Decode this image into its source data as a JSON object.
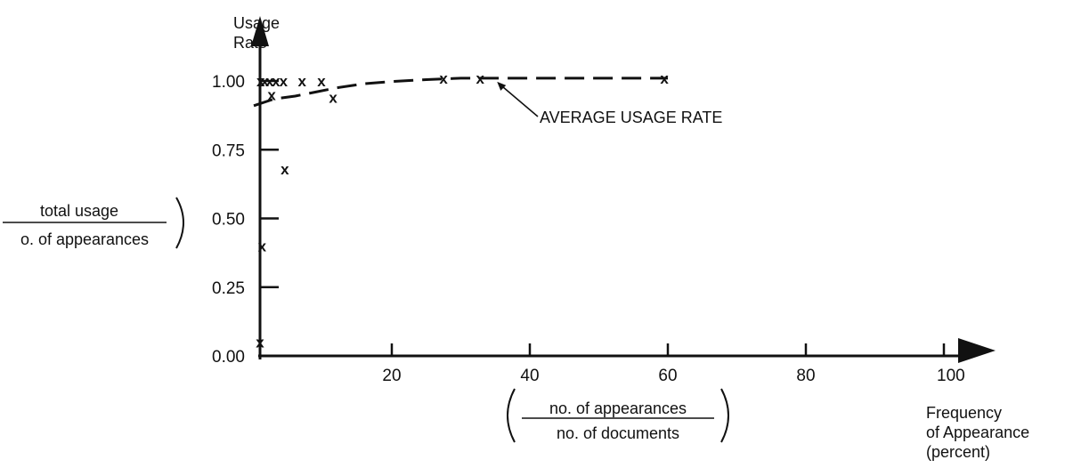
{
  "chart_data": {
    "type": "scatter",
    "y_axis_title": [
      "Usage",
      "Rate"
    ],
    "y_formula": {
      "numerator": "total usage",
      "denominator": "o. of appearances"
    },
    "x_axis_title": [
      "Frequency",
      "of Appearance",
      "(percent)"
    ],
    "x_formula": {
      "numerator": "no. of appearances",
      "denominator": "no. of documents"
    },
    "xlim": [
      0,
      100
    ],
    "ylim": [
      0,
      1.0
    ],
    "x_ticks": [
      20,
      40,
      60,
      80,
      100
    ],
    "x_tick_labels": [
      "20",
      "40",
      "60",
      "80",
      "100"
    ],
    "y_ticks": [
      0,
      0.25,
      0.5,
      0.75,
      1.0
    ],
    "y_tick_labels": [
      "0.00",
      "0.25",
      "0.50",
      "0.75",
      "1.00"
    ],
    "marker": "x",
    "grid": false,
    "points": [
      {
        "x": 0.9,
        "y": 0.05
      },
      {
        "x": 1.2,
        "y": 0.4
      },
      {
        "x": 1.0,
        "y": 1.0
      },
      {
        "x": 1.6,
        "y": 1.0
      },
      {
        "x": 2.3,
        "y": 1.0
      },
      {
        "x": 2.6,
        "y": 0.95
      },
      {
        "x": 3.2,
        "y": 1.0
      },
      {
        "x": 4.3,
        "y": 1.0
      },
      {
        "x": 4.5,
        "y": 0.68
      },
      {
        "x": 7.0,
        "y": 1.0
      },
      {
        "x": 9.8,
        "y": 1.0
      },
      {
        "x": 11.5,
        "y": 0.94
      },
      {
        "x": 27.5,
        "y": 1.01
      },
      {
        "x": 32.8,
        "y": 1.01
      },
      {
        "x": 59.5,
        "y": 1.01
      }
    ],
    "average_curve": {
      "label": "AVERAGE USAGE RATE",
      "x": [
        0,
        3,
        6,
        9,
        12,
        16,
        20,
        25,
        30,
        40,
        50,
        60
      ],
      "y": [
        0.91,
        0.935,
        0.945,
        0.96,
        0.975,
        0.99,
        0.998,
        1.005,
        1.01,
        1.01,
        1.01,
        1.01
      ]
    },
    "annotation_anchor": {
      "x": 35.0,
      "y": 1.01
    }
  }
}
